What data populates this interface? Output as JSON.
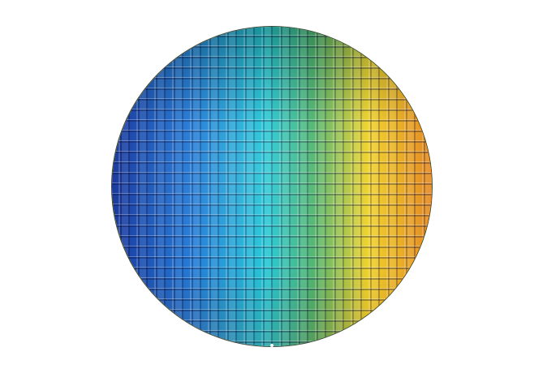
{
  "image": {
    "subject": "silicon-wafer",
    "colors": {
      "left": "#1b3a9e",
      "left_mid": "#1f78d6",
      "center": "#1ec6d6",
      "center_right": "#4fb46a",
      "right_mid": "#f0d22c",
      "right": "#e48a26",
      "background": "#ffffff"
    }
  }
}
